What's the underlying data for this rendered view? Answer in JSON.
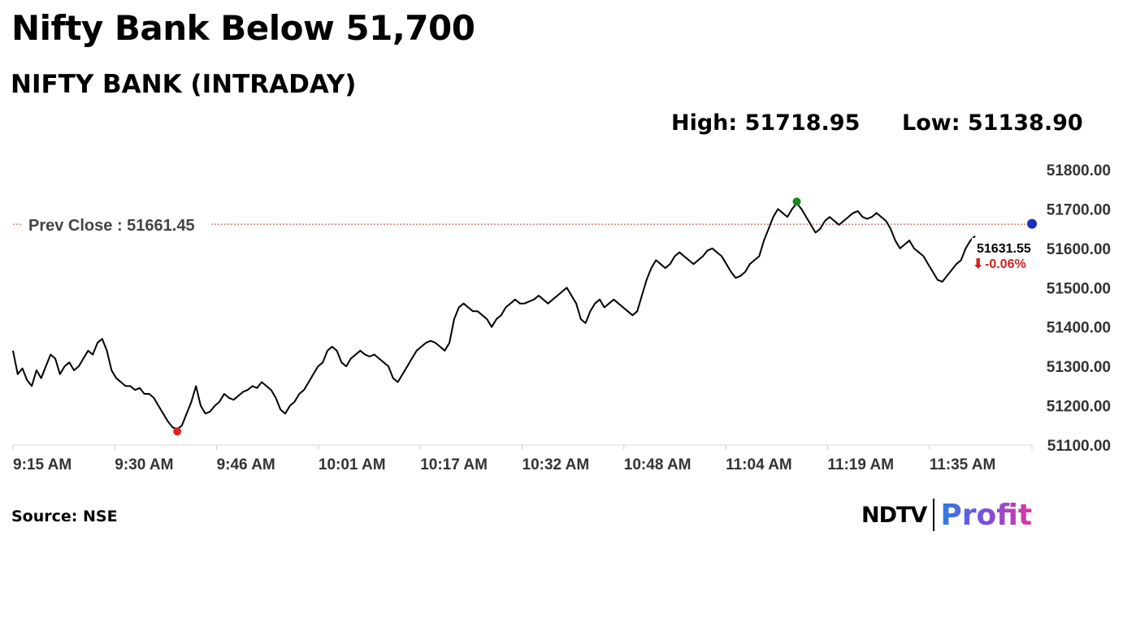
{
  "headline": "Nifty Bank Below 51,700",
  "subtitle": "NIFTY BANK (INTRADAY)",
  "stats": {
    "high": "High: 51718.95",
    "low": "Low: 51138.90"
  },
  "source": "Source: NSE",
  "logo": {
    "ndtv": "NDTV",
    "profit": "Profit"
  },
  "colors": {
    "line": "#000000",
    "prev_close": "#d43a3a",
    "high_marker": "#1a8a1a",
    "low_marker": "#e02020",
    "last_marker": "#1e2fc0",
    "change": "#d61f1f"
  },
  "chart_data": {
    "type": "line",
    "title": "NIFTY BANK (INTRADAY)",
    "xlabel": "",
    "ylabel": "",
    "ylim": [
      51100,
      51800
    ],
    "y_ticks": [
      "51800.00",
      "51700.00",
      "51600.00",
      "51500.00",
      "51400.00",
      "51300.00",
      "51200.00",
      "51100.00"
    ],
    "x_ticks": [
      "9:15 AM",
      "9:30 AM",
      "9:46 AM",
      "10:01 AM",
      "10:17 AM",
      "10:32 AM",
      "10:48 AM",
      "11:04 AM",
      "11:19 AM",
      "11:35 AM"
    ],
    "prev_close": 51661.45,
    "prev_close_label": "Prev Close : 51661.45",
    "last_value_label": "51631.55",
    "change_label": "-0.06%",
    "high": 51718.95,
    "low": 51138.9,
    "series": [
      {
        "values": [
          51340,
          51280,
          51295,
          51265,
          51250,
          51290,
          51270,
          51300,
          51330,
          51320,
          51280,
          51300,
          51310,
          51290,
          51300,
          51320,
          51340,
          51330,
          51360,
          51370,
          51340,
          51290,
          51270,
          51260,
          51250,
          51250,
          51240,
          51245,
          51230,
          51230,
          51220,
          51200,
          51180,
          51160,
          51145,
          51140,
          51150,
          51180,
          51210,
          51250,
          51200,
          51180,
          51185,
          51200,
          51210,
          51230,
          51220,
          51215,
          51225,
          51235,
          51240,
          51250,
          51245,
          51260,
          51250,
          51240,
          51220,
          51190,
          51180,
          51200,
          51210,
          51230,
          51240,
          51260,
          51280,
          51300,
          51310,
          51340,
          51350,
          51340,
          51310,
          51300,
          51320,
          51330,
          51340,
          51330,
          51325,
          51330,
          51320,
          51310,
          51300,
          51270,
          51260,
          51280,
          51300,
          51320,
          51340,
          51350,
          51360,
          51365,
          51360,
          51350,
          51340,
          51360,
          51420,
          51450,
          51460,
          51450,
          51440,
          51440,
          51430,
          51420,
          51400,
          51420,
          51430,
          51450,
          51460,
          51470,
          51460,
          51460,
          51465,
          51470,
          51480,
          51470,
          51460,
          51470,
          51480,
          51490,
          51500,
          51480,
          51460,
          51420,
          51410,
          51440,
          51460,
          51470,
          51450,
          51460,
          51470,
          51460,
          51450,
          51440,
          51430,
          51440,
          51480,
          51520,
          51550,
          51570,
          51560,
          51550,
          51560,
          51580,
          51590,
          51580,
          51570,
          51560,
          51570,
          51580,
          51595,
          51600,
          51590,
          51580,
          51560,
          51540,
          51525,
          51530,
          51540,
          51560,
          51570,
          51580,
          51620,
          51650,
          51680,
          51700,
          51690,
          51680,
          51700,
          51715,
          51700,
          51680,
          51660,
          51640,
          51650,
          51670,
          51680,
          51670,
          51660,
          51670,
          51680,
          51690,
          51695,
          51680,
          51675,
          51680,
          51690,
          51680,
          51670,
          51650,
          51620,
          51600,
          51610,
          51620,
          51600,
          51590,
          51580,
          51560,
          51540,
          51520,
          51515,
          51530,
          51545,
          51560,
          51570,
          51600,
          51620,
          51631.55
        ]
      }
    ]
  }
}
